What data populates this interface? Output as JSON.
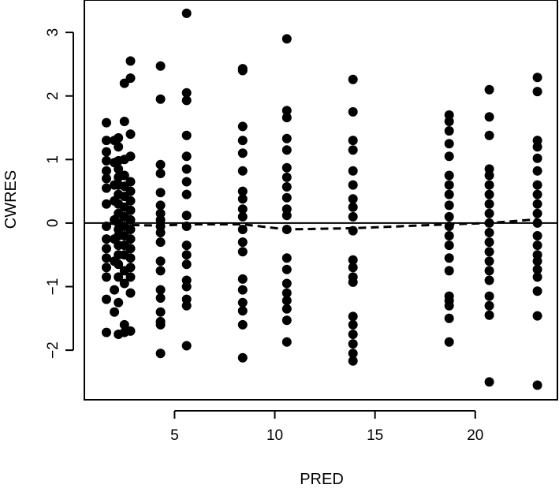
{
  "chart_data": {
    "type": "scatter",
    "title": "",
    "xlabel": "PRED",
    "ylabel": "CWRES",
    "xlim": [
      0.5,
      24.1
    ],
    "ylim": [
      -2.78,
      3.51
    ],
    "grid": false,
    "xticks": [
      5,
      10,
      15,
      20
    ],
    "yticks": [
      -2,
      -1,
      0,
      1,
      2,
      3
    ],
    "reference_line": {
      "y": 0,
      "style": "solid"
    },
    "smooth_line": {
      "style": "dashed",
      "x": [
        1.6,
        2.5,
        4.3,
        5.6,
        8.4,
        10.6,
        13.9,
        18.7,
        20.7,
        23.1
      ],
      "y": [
        0.0,
        -0.03,
        -0.04,
        -0.02,
        -0.02,
        -0.1,
        -0.08,
        -0.02,
        0.0,
        0.06
      ]
    },
    "series": [
      {
        "points": [
          [
            1.6,
            1.58
          ],
          [
            1.6,
            1.3
          ],
          [
            1.6,
            1.12
          ],
          [
            1.6,
            0.98
          ],
          [
            1.6,
            0.82
          ],
          [
            1.6,
            0.7
          ],
          [
            1.6,
            0.55
          ],
          [
            1.6,
            0.3
          ],
          [
            1.6,
            -0.05
          ],
          [
            1.6,
            -0.25
          ],
          [
            1.6,
            -0.4
          ],
          [
            1.6,
            -0.55
          ],
          [
            1.6,
            -0.7
          ],
          [
            1.6,
            -0.85
          ],
          [
            1.6,
            -1.2
          ],
          [
            1.6,
            -1.72
          ],
          [
            2.0,
            1.3
          ],
          [
            2.0,
            0.95
          ],
          [
            2.0,
            0.6
          ],
          [
            2.0,
            0.35
          ],
          [
            2.0,
            0.05
          ],
          [
            2.0,
            -0.25
          ],
          [
            2.0,
            -0.6
          ],
          [
            2.0,
            -1.05
          ],
          [
            2.0,
            -1.4
          ],
          [
            2.2,
            1.34
          ],
          [
            2.2,
            1.2
          ],
          [
            2.2,
            0.98
          ],
          [
            2.2,
            0.85
          ],
          [
            2.2,
            0.72
          ],
          [
            2.2,
            0.6
          ],
          [
            2.2,
            0.45
          ],
          [
            2.2,
            0.3
          ],
          [
            2.2,
            0.15
          ],
          [
            2.2,
            0.0
          ],
          [
            2.2,
            -0.1
          ],
          [
            2.2,
            -0.2
          ],
          [
            2.2,
            -0.35
          ],
          [
            2.2,
            -0.5
          ],
          [
            2.2,
            -0.65
          ],
          [
            2.2,
            -0.85
          ],
          [
            2.2,
            -1.25
          ],
          [
            2.2,
            -1.75
          ],
          [
            2.5,
            2.2
          ],
          [
            2.5,
            1.6
          ],
          [
            2.5,
            1.0
          ],
          [
            2.5,
            0.75
          ],
          [
            2.5,
            0.58
          ],
          [
            2.5,
            0.42
          ],
          [
            2.5,
            0.25
          ],
          [
            2.5,
            0.1
          ],
          [
            2.5,
            -0.05
          ],
          [
            2.5,
            -0.2
          ],
          [
            2.5,
            -0.35
          ],
          [
            2.5,
            -0.5
          ],
          [
            2.5,
            -0.75
          ],
          [
            2.5,
            -0.95
          ],
          [
            2.5,
            -1.6
          ],
          [
            2.5,
            -1.72
          ],
          [
            2.8,
            2.55
          ],
          [
            2.8,
            2.28
          ],
          [
            2.8,
            1.4
          ],
          [
            2.8,
            1.05
          ],
          [
            2.8,
            0.65
          ],
          [
            2.8,
            0.5
          ],
          [
            2.8,
            0.35
          ],
          [
            2.8,
            0.2
          ],
          [
            2.8,
            0.05
          ],
          [
            2.8,
            -0.1
          ],
          [
            2.8,
            -0.25
          ],
          [
            2.8,
            -0.4
          ],
          [
            2.8,
            -0.55
          ],
          [
            2.8,
            -0.7
          ],
          [
            2.8,
            -0.85
          ],
          [
            2.8,
            -1.1
          ],
          [
            2.8,
            -1.7
          ],
          [
            4.3,
            2.47
          ],
          [
            4.3,
            1.95
          ],
          [
            4.3,
            0.92
          ],
          [
            4.3,
            0.78
          ],
          [
            4.3,
            0.48
          ],
          [
            4.3,
            0.28
          ],
          [
            4.3,
            0.15
          ],
          [
            4.3,
            0.05
          ],
          [
            4.3,
            -0.05
          ],
          [
            4.3,
            -0.15
          ],
          [
            4.3,
            -0.3
          ],
          [
            4.3,
            -0.6
          ],
          [
            4.3,
            -0.75
          ],
          [
            4.3,
            -1.05
          ],
          [
            4.3,
            -1.18
          ],
          [
            4.3,
            -1.4
          ],
          [
            4.3,
            -1.55
          ],
          [
            4.3,
            -1.6
          ],
          [
            4.3,
            -2.05
          ],
          [
            5.6,
            3.3
          ],
          [
            5.6,
            2.05
          ],
          [
            5.6,
            1.93
          ],
          [
            5.6,
            1.38
          ],
          [
            5.6,
            1.05
          ],
          [
            5.6,
            0.85
          ],
          [
            5.6,
            0.65
          ],
          [
            5.6,
            0.45
          ],
          [
            5.6,
            0.12
          ],
          [
            5.6,
            -0.05
          ],
          [
            5.6,
            -0.35
          ],
          [
            5.6,
            -0.5
          ],
          [
            5.6,
            -0.65
          ],
          [
            5.6,
            -0.9
          ],
          [
            5.6,
            -1.0
          ],
          [
            5.6,
            -1.2
          ],
          [
            5.6,
            -1.3
          ],
          [
            5.6,
            -1.93
          ],
          [
            8.4,
            2.43
          ],
          [
            8.4,
            2.4
          ],
          [
            8.4,
            1.52
          ],
          [
            8.4,
            1.3
          ],
          [
            8.4,
            1.1
          ],
          [
            8.4,
            0.82
          ],
          [
            8.4,
            0.5
          ],
          [
            8.4,
            0.38
          ],
          [
            8.4,
            0.22
          ],
          [
            8.4,
            0.1
          ],
          [
            8.4,
            -0.1
          ],
          [
            8.4,
            -0.3
          ],
          [
            8.4,
            -0.45
          ],
          [
            8.4,
            -0.88
          ],
          [
            8.4,
            -1.05
          ],
          [
            8.4,
            -1.25
          ],
          [
            8.4,
            -1.38
          ],
          [
            8.4,
            -1.6
          ],
          [
            8.4,
            -2.12
          ],
          [
            10.6,
            2.9
          ],
          [
            10.6,
            1.77
          ],
          [
            10.6,
            1.66
          ],
          [
            10.6,
            1.33
          ],
          [
            10.6,
            1.15
          ],
          [
            10.6,
            0.87
          ],
          [
            10.6,
            0.72
          ],
          [
            10.6,
            0.57
          ],
          [
            10.6,
            0.4
          ],
          [
            10.6,
            0.22
          ],
          [
            10.6,
            0.12
          ],
          [
            10.6,
            -0.1
          ],
          [
            10.6,
            -0.55
          ],
          [
            10.6,
            -0.73
          ],
          [
            10.6,
            -0.95
          ],
          [
            10.6,
            -1.1
          ],
          [
            10.6,
            -1.22
          ],
          [
            10.6,
            -1.35
          ],
          [
            10.6,
            -1.53
          ],
          [
            10.6,
            -1.87
          ],
          [
            13.9,
            2.26
          ],
          [
            13.9,
            1.75
          ],
          [
            13.9,
            1.3
          ],
          [
            13.9,
            1.15
          ],
          [
            13.9,
            0.82
          ],
          [
            13.9,
            0.6
          ],
          [
            13.9,
            0.38
          ],
          [
            13.9,
            0.25
          ],
          [
            13.9,
            0.1
          ],
          [
            13.9,
            -0.12
          ],
          [
            13.9,
            -0.58
          ],
          [
            13.9,
            -0.7
          ],
          [
            13.9,
            -0.85
          ],
          [
            13.9,
            -0.93
          ],
          [
            13.9,
            -1.47
          ],
          [
            13.9,
            -1.6
          ],
          [
            13.9,
            -1.75
          ],
          [
            13.9,
            -1.9
          ],
          [
            13.9,
            -2.05
          ],
          [
            13.9,
            -2.17
          ],
          [
            18.7,
            1.7
          ],
          [
            18.7,
            1.6
          ],
          [
            18.7,
            1.45
          ],
          [
            18.7,
            1.25
          ],
          [
            18.7,
            1.05
          ],
          [
            18.7,
            0.75
          ],
          [
            18.7,
            0.6
          ],
          [
            18.7,
            0.45
          ],
          [
            18.7,
            0.28
          ],
          [
            18.7,
            0.1
          ],
          [
            18.7,
            -0.05
          ],
          [
            18.7,
            -0.2
          ],
          [
            18.7,
            -0.35
          ],
          [
            18.7,
            -0.55
          ],
          [
            18.7,
            -0.75
          ],
          [
            18.7,
            -1.15
          ],
          [
            18.7,
            -1.22
          ],
          [
            18.7,
            -1.3
          ],
          [
            18.7,
            -1.5
          ],
          [
            18.7,
            -1.87
          ],
          [
            20.7,
            2.1
          ],
          [
            20.7,
            1.67
          ],
          [
            20.7,
            1.38
          ],
          [
            20.7,
            0.85
          ],
          [
            20.7,
            0.75
          ],
          [
            20.7,
            0.6
          ],
          [
            20.7,
            0.45
          ],
          [
            20.7,
            0.3
          ],
          [
            20.7,
            0.15
          ],
          [
            20.7,
            0.0
          ],
          [
            20.7,
            -0.15
          ],
          [
            20.7,
            -0.3
          ],
          [
            20.7,
            -0.45
          ],
          [
            20.7,
            -0.6
          ],
          [
            20.7,
            -0.75
          ],
          [
            20.7,
            -0.9
          ],
          [
            20.7,
            -1.15
          ],
          [
            20.7,
            -1.3
          ],
          [
            20.7,
            -1.45
          ],
          [
            20.7,
            -2.5
          ],
          [
            23.1,
            2.29
          ],
          [
            23.1,
            2.07
          ],
          [
            23.1,
            1.3
          ],
          [
            23.1,
            1.2
          ],
          [
            23.1,
            1.02
          ],
          [
            23.1,
            0.82
          ],
          [
            23.1,
            0.6
          ],
          [
            23.1,
            0.45
          ],
          [
            23.1,
            0.3
          ],
          [
            23.1,
            0.15
          ],
          [
            23.1,
            0.0
          ],
          [
            23.1,
            -0.2
          ],
          [
            23.1,
            -0.35
          ],
          [
            23.1,
            -0.5
          ],
          [
            23.1,
            -0.6
          ],
          [
            23.1,
            -0.73
          ],
          [
            23.1,
            -0.85
          ],
          [
            23.1,
            -1.07
          ],
          [
            23.1,
            -1.46
          ],
          [
            23.1,
            -2.55
          ]
        ]
      }
    ]
  }
}
